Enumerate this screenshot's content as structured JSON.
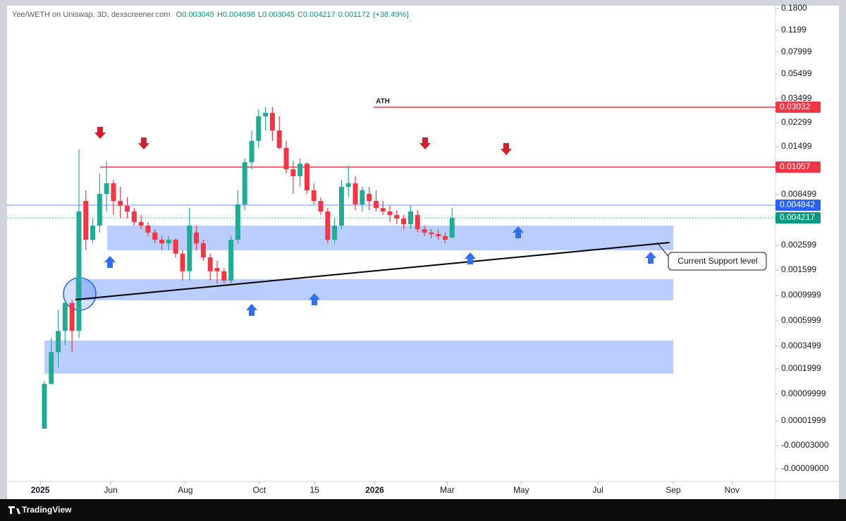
{
  "chart_data": {
    "type": "candlestick",
    "header": {
      "symbol": "Yee/WETH on Uniswap, 3D, dexscreener.com",
      "ohlc": [
        {
          "label": "O",
          "value": 0.003045
        },
        {
          "label": "H",
          "value": 0.004698
        },
        {
          "label": "L",
          "value": 0.003045
        },
        {
          "label": "C",
          "value": 0.004217
        }
      ],
      "change": 0.001172,
      "change_percent": {
        "value": 38.49,
        "label": "(+38.49%)"
      }
    },
    "up_color": "#22ab94",
    "down_color": "#f23645",
    "candles": [
      [
        4.3e-06,
        0.00015,
        4.3e-06,
        0.00014
      ],
      [
        0.00014,
        0.00043,
        0.00014,
        0.00031
      ],
      [
        0.00031,
        0.00077,
        0.00021,
        0.0005
      ],
      [
        0.0005,
        0.00093,
        0.00036,
        0.00088
      ],
      [
        0.00088,
        0.00093,
        0.00031,
        0.0005
      ],
      [
        0.0005,
        0.0144,
        0.00043,
        0.00453
      ],
      [
        0.0063,
        0.00882,
        0.0024,
        0.00293
      ],
      [
        0.00293,
        0.00418,
        0.00272,
        0.00376
      ],
      [
        0.00376,
        0.0101,
        0.00335,
        0.00855
      ],
      [
        0.00855,
        0.0119,
        0.00453,
        0.00935
      ],
      [
        0.00935,
        0.00961,
        0.00436,
        0.0063
      ],
      [
        0.0063,
        0.00908,
        0.00418,
        0.00481
      ],
      [
        0.00481,
        0.00752,
        0.00418,
        0.00453
      ],
      [
        0.00453,
        0.0047,
        0.00376,
        0.00397
      ],
      [
        0.00397,
        0.00436,
        0.00355,
        0.00376
      ],
      [
        0.00376,
        0.00397,
        0.00314,
        0.00335
      ],
      [
        0.00335,
        0.00355,
        0.00272,
        0.00293
      ],
      [
        0.00293,
        0.00314,
        0.0024,
        0.00272
      ],
      [
        0.00272,
        0.00314,
        0.0024,
        0.00293
      ],
      [
        0.00293,
        0.00301,
        0.00211,
        0.00226
      ],
      [
        0.00226,
        0.0024,
        0.00135,
        0.00157
      ],
      [
        0.00157,
        0.0047,
        0.00135,
        0.00376
      ],
      [
        0.00335,
        0.00376,
        0.0024,
        0.00272
      ],
      [
        0.00272,
        0.00293,
        0.00197,
        0.00211
      ],
      [
        0.00211,
        0.00226,
        0.00135,
        0.00157
      ],
      [
        0.00168,
        0.00197,
        0.00128,
        0.00157
      ],
      [
        0.00157,
        0.00168,
        0.00128,
        0.00135
      ],
      [
        0.00135,
        0.00314,
        0.00128,
        0.00293
      ],
      [
        0.00293,
        0.00882,
        0.00272,
        0.00508
      ],
      [
        0.00508,
        0.0124,
        0.0046,
        0.0116
      ],
      [
        0.0116,
        0.0204,
        0.0104,
        0.0169
      ],
      [
        0.0169,
        0.0293,
        0.0147,
        0.026
      ],
      [
        0.026,
        0.03032,
        0.0204,
        0.0276
      ],
      [
        0.0276,
        0.03032,
        0.0169,
        0.0204
      ],
      [
        0.0204,
        0.026,
        0.0144,
        0.0147
      ],
      [
        0.0147,
        0.0169,
        0.0101,
        0.0104
      ],
      [
        0.0104,
        0.0119,
        0.00855,
        0.00988
      ],
      [
        0.00988,
        0.0124,
        0.00908,
        0.0113
      ],
      [
        0.0113,
        0.0116,
        0.00855,
        0.00882
      ],
      [
        0.00882,
        0.00935,
        0.00508,
        0.0063
      ],
      [
        0.0063,
        0.00752,
        0.00436,
        0.00453
      ],
      [
        0.00453,
        0.0047,
        0.00272,
        0.00293
      ],
      [
        0.00293,
        0.00418,
        0.00272,
        0.00376
      ],
      [
        0.00376,
        0.00961,
        0.00355,
        0.00908
      ],
      [
        0.00908,
        0.0109,
        0.00752,
        0.00935
      ],
      [
        0.00935,
        0.00988,
        0.0046,
        0.00508
      ],
      [
        0.00508,
        0.00908,
        0.00453,
        0.00882
      ],
      [
        0.00855,
        0.00908,
        0.0046,
        0.0063
      ],
      [
        0.0063,
        0.00882,
        0.00453,
        0.0047
      ],
      [
        0.0047,
        0.0063,
        0.00436,
        0.00453
      ],
      [
        0.00453,
        0.00481,
        0.00397,
        0.00436
      ],
      [
        0.00436,
        0.0046,
        0.00384,
        0.00418
      ],
      [
        0.00418,
        0.00436,
        0.00355,
        0.00384
      ],
      [
        0.00384,
        0.00481,
        0.00355,
        0.00453
      ],
      [
        0.00436,
        0.0046,
        0.00335,
        0.00355
      ],
      [
        0.00355,
        0.00376,
        0.00314,
        0.00335
      ],
      [
        0.00335,
        0.00355,
        0.00301,
        0.00326
      ],
      [
        0.00326,
        0.00355,
        0.00293,
        0.00314
      ],
      [
        0.00314,
        0.00335,
        0.00272,
        0.00293
      ],
      [
        0.003045,
        0.004698,
        0.003045,
        0.004217
      ]
    ],
    "xlim": [
      -5.4,
      105.8
    ],
    "xticks": [
      {
        "value": -0.6,
        "label": "2025"
      },
      {
        "value": 9.6,
        "label": "Jun"
      },
      {
        "value": 20.4,
        "label": "Aug"
      },
      {
        "value": 31.1,
        "label": "Oct"
      },
      {
        "value": 39.1,
        "label": "15"
      },
      {
        "value": 47.8,
        "label": "2026"
      },
      {
        "value": 58.3,
        "label": "Mar"
      },
      {
        "value": 69,
        "label": "May"
      },
      {
        "value": 80.1,
        "label": "Jul"
      },
      {
        "value": 91,
        "label": "Sep"
      },
      {
        "value": 99.5,
        "label": "Nov"
      }
    ],
    "yticks": [
      {
        "value": 0.18,
        "label": "0.1800"
      },
      0.1199,
      0.07999,
      0.05499,
      0.03499,
      0.02299,
      0.01499,
      0.008499,
      0.002599,
      0.001599,
      0.0009999,
      0.0005999,
      0.0003499,
      0.0001999,
      9.999e-05,
      1.999e-05,
      {
        "value": -3e-05,
        "label": "-0.00003000"
      },
      {
        "value": -9e-05,
        "label": "-0.00009000"
      }
    ],
    "levels": [
      {
        "value": 0.03032,
        "color": "#f23645"
      },
      {
        "value": 0.01057,
        "color": "#f23645"
      },
      {
        "value": 0.004842,
        "color": "#2962ff"
      },
      {
        "value": 0.004217,
        "color": "#089981"
      }
    ],
    "annotations": [
      "ATH",
      "Current Support level"
    ],
    "footer": "TradingView"
  }
}
